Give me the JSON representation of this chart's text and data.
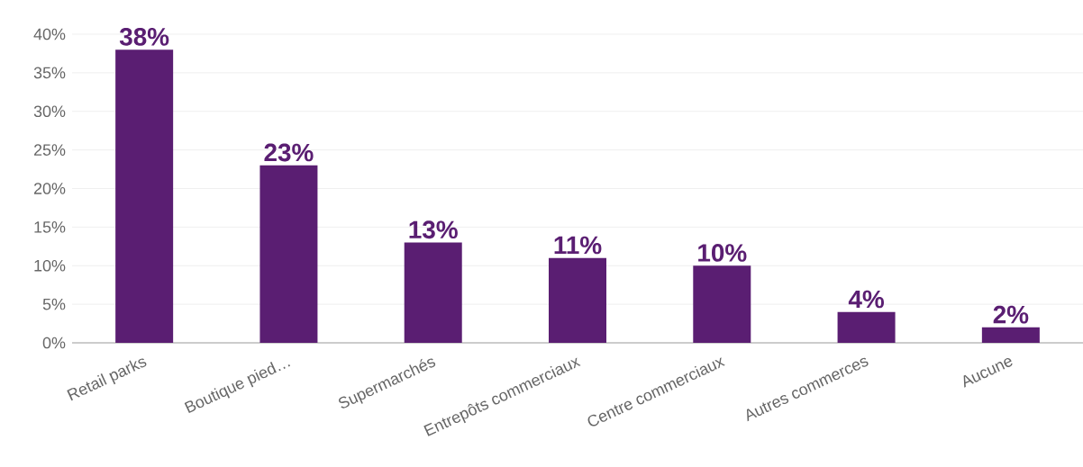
{
  "chart_data": {
    "type": "bar",
    "categories": [
      "Retail parks",
      "Boutique pied…",
      "Supermarchés",
      "Entrepôts commerciaux",
      "Centre commerciaux",
      "Autres commerces",
      "Aucune"
    ],
    "values": [
      38,
      23,
      13,
      11,
      10,
      4,
      2
    ],
    "value_labels": [
      "38%",
      "23%",
      "13%",
      "11%",
      "10%",
      "4%",
      "2%"
    ],
    "color": "#5a1e72",
    "ylim": [
      0,
      40
    ],
    "yticks": [
      {
        "value": 0,
        "label": "0%"
      },
      {
        "value": 5,
        "label": "5%"
      },
      {
        "value": 10,
        "label": "10%"
      },
      {
        "value": 15,
        "label": "15%"
      },
      {
        "value": 20,
        "label": "20%"
      },
      {
        "value": 25,
        "label": "25%"
      },
      {
        "value": 30,
        "label": "30%"
      },
      {
        "value": 35,
        "label": "35%"
      },
      {
        "value": 40,
        "label": "40%"
      }
    ],
    "grid": "y"
  }
}
